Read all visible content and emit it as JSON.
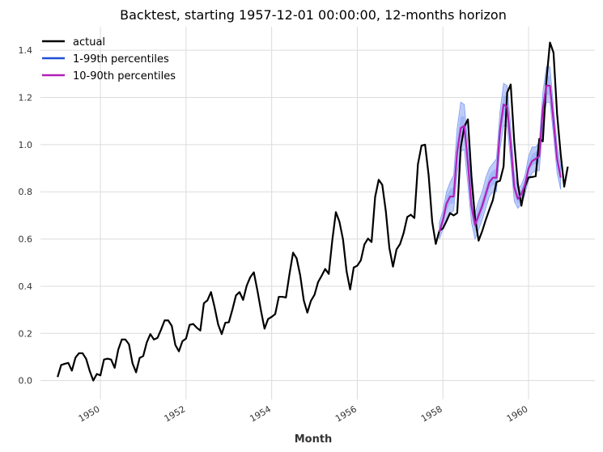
{
  "chart_data": {
    "type": "line",
    "title": "Backtest, starting 1957-12-01 00:00:00, 12-months horizon",
    "xlabel": "Month",
    "ylabel": "",
    "xlim": [
      1948.6,
      1961.55
    ],
    "ylim": [
      -0.08,
      1.5
    ],
    "x_ticks": [
      1950,
      1952,
      1954,
      1956,
      1958,
      1960
    ],
    "x_tick_labels": [
      "1950",
      "1952",
      "1954",
      "1956",
      "1958",
      "1960"
    ],
    "y_ticks": [
      0.0,
      0.2,
      0.4,
      0.6,
      0.8,
      1.0,
      1.2,
      1.4
    ],
    "y_tick_labels": [
      "0.0",
      "0.2",
      "0.4",
      "0.6",
      "0.8",
      "1.0",
      "1.2",
      "1.4"
    ],
    "legend_position": "top-left",
    "legend": [
      {
        "label": "actual",
        "color": "#000000"
      },
      {
        "label": "1-99th percentiles",
        "color": "#1f4fd8"
      },
      {
        "label": "10-90th percentiles",
        "color": "#b11fb8"
      }
    ],
    "actual": {
      "start": 1949.0,
      "step": 0.0833333,
      "values": [
        0.015,
        0.066,
        0.071,
        0.075,
        0.042,
        0.097,
        0.116,
        0.116,
        0.092,
        0.041,
        0.0,
        0.028,
        0.022,
        0.089,
        0.093,
        0.089,
        0.054,
        0.131,
        0.174,
        0.174,
        0.154,
        0.073,
        0.035,
        0.096,
        0.104,
        0.162,
        0.197,
        0.174,
        0.181,
        0.216,
        0.255,
        0.255,
        0.232,
        0.151,
        0.124,
        0.167,
        0.178,
        0.236,
        0.24,
        0.224,
        0.212,
        0.328,
        0.34,
        0.375,
        0.311,
        0.238,
        0.197,
        0.245,
        0.247,
        0.301,
        0.361,
        0.375,
        0.342,
        0.402,
        0.438,
        0.459,
        0.382,
        0.297,
        0.22,
        0.261,
        0.27,
        0.282,
        0.355,
        0.355,
        0.352,
        0.452,
        0.542,
        0.518,
        0.446,
        0.34,
        0.288,
        0.338,
        0.363,
        0.417,
        0.444,
        0.473,
        0.452,
        0.595,
        0.714,
        0.673,
        0.598,
        0.463,
        0.386,
        0.479,
        0.487,
        0.51,
        0.577,
        0.602,
        0.587,
        0.778,
        0.851,
        0.83,
        0.718,
        0.561,
        0.483,
        0.556,
        0.579,
        0.626,
        0.693,
        0.703,
        0.689,
        0.917,
        0.996,
        1.0,
        0.87,
        0.673,
        0.579,
        0.635,
        0.645,
        0.676,
        0.71,
        0.7,
        0.71,
        0.99,
        1.076,
        1.107,
        0.866,
        0.69,
        0.593,
        0.633,
        0.681,
        0.724,
        0.765,
        0.841,
        0.847,
        0.907,
        1.22,
        1.255,
        1.01,
        0.834,
        0.741,
        0.822,
        0.861,
        0.863,
        0.866,
        1.024,
        1.014,
        1.27,
        1.433,
        1.39,
        1.13,
        0.961,
        0.822,
        0.907
      ]
    },
    "forecast": {
      "start": 1957.9167,
      "step": 0.0833333,
      "median": [
        0.63,
        0.68,
        0.75,
        0.78,
        0.78,
        0.97,
        1.07,
        1.08,
        0.92,
        0.74,
        0.66,
        0.7,
        0.74,
        0.79,
        0.84,
        0.86,
        0.86,
        1.06,
        1.17,
        1.16,
        1.0,
        0.82,
        0.77,
        0.79,
        0.83,
        0.9,
        0.93,
        0.94,
        0.95,
        1.15,
        1.25,
        1.25,
        1.1,
        0.94,
        0.86
      ],
      "p1": [
        0.6,
        0.64,
        0.68,
        0.71,
        0.72,
        0.88,
        0.97,
        0.98,
        0.83,
        0.67,
        0.6,
        0.64,
        0.68,
        0.73,
        0.78,
        0.8,
        0.8,
        0.98,
        1.08,
        1.08,
        0.93,
        0.76,
        0.73,
        0.75,
        0.79,
        0.85,
        0.88,
        0.89,
        0.89,
        1.08,
        1.18,
        1.18,
        1.04,
        0.88,
        0.81
      ],
      "p99": [
        0.67,
        0.72,
        0.8,
        0.84,
        0.87,
        1.07,
        1.18,
        1.17,
        1.0,
        0.81,
        0.71,
        0.76,
        0.8,
        0.86,
        0.9,
        0.92,
        0.94,
        1.14,
        1.26,
        1.25,
        1.08,
        0.88,
        0.81,
        0.83,
        0.87,
        0.95,
        0.99,
        0.99,
        1.01,
        1.22,
        1.33,
        1.33,
        1.16,
        1.0,
        0.91
      ],
      "p10": [
        0.62,
        0.66,
        0.72,
        0.75,
        0.75,
        0.93,
        1.03,
        1.03,
        0.88,
        0.71,
        0.63,
        0.67,
        0.71,
        0.76,
        0.81,
        0.83,
        0.83,
        1.02,
        1.12,
        1.12,
        0.96,
        0.79,
        0.75,
        0.77,
        0.81,
        0.88,
        0.91,
        0.92,
        0.92,
        1.11,
        1.21,
        1.21,
        1.07,
        0.91,
        0.84
      ],
      "p90": [
        0.65,
        0.7,
        0.78,
        0.81,
        0.82,
        1.02,
        1.12,
        1.12,
        0.96,
        0.77,
        0.69,
        0.73,
        0.77,
        0.82,
        0.87,
        0.89,
        0.9,
        1.1,
        1.21,
        1.2,
        1.04,
        0.85,
        0.79,
        0.81,
        0.85,
        0.92,
        0.96,
        0.97,
        0.98,
        1.18,
        1.29,
        1.29,
        1.13,
        0.97,
        0.88
      ]
    }
  },
  "colors": {
    "actual": "#000000",
    "band_outer": "#6f8ff0",
    "band_outer_edge": "#7f9cf5",
    "median": "#b11fb8",
    "grid": "#dcdcdc"
  }
}
